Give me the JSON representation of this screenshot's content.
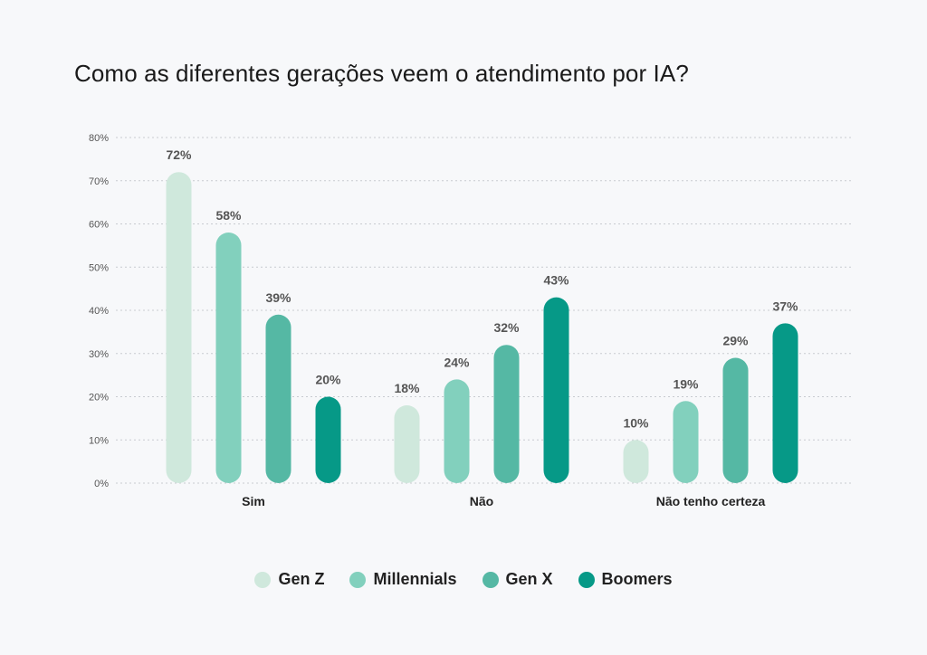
{
  "chart_data": {
    "type": "bar",
    "title": "Como as diferentes gerações veem o atendimento por IA?",
    "categories": [
      "Sim",
      "Não",
      "Não tenho certeza"
    ],
    "series": [
      {
        "name": "Gen Z",
        "color": "#cfe8dc",
        "values": [
          72,
          18,
          10
        ]
      },
      {
        "name": "Millennials",
        "color": "#82d0bd",
        "values": [
          58,
          24,
          19
        ]
      },
      {
        "name": "Gen X",
        "color": "#55b8a4",
        "values": [
          39,
          32,
          29
        ]
      },
      {
        "name": "Boomers",
        "color": "#069987",
        "values": [
          20,
          43,
          37
        ]
      }
    ],
    "ylim": [
      0,
      80
    ],
    "yticks": [
      0,
      10,
      20,
      30,
      40,
      50,
      60,
      70,
      80
    ],
    "ytick_format": "%",
    "grid": true,
    "legend_position": "bottom"
  }
}
